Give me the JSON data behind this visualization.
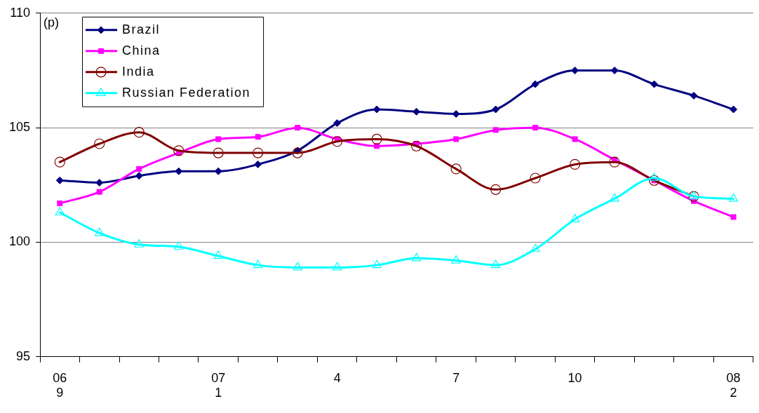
{
  "chart_data": {
    "type": "line",
    "categories": [
      "06\n9",
      null,
      null,
      null,
      "07\n1",
      null,
      null,
      "4",
      null,
      null,
      "7",
      null,
      null,
      "10",
      null,
      null,
      null,
      "08\n2"
    ],
    "series": [
      {
        "name": "Brazil",
        "color": "#000080",
        "marker": "diamond",
        "values": [
          102.7,
          102.6,
          102.9,
          103.1,
          103.1,
          103.4,
          104.0,
          105.2,
          105.8,
          105.7,
          105.6,
          105.8,
          106.9,
          107.5,
          107.5,
          106.9,
          106.4,
          105.8
        ]
      },
      {
        "name": "China",
        "color": "#ff00ff",
        "marker": "square",
        "values": [
          101.7,
          102.2,
          103.2,
          103.9,
          104.5,
          104.6,
          105.0,
          104.5,
          104.2,
          104.3,
          104.5,
          104.9,
          105.0,
          104.5,
          103.6,
          102.7,
          101.8,
          101.1
        ]
      },
      {
        "name": "India",
        "color": "#800000",
        "marker": "circle",
        "values": [
          103.5,
          104.3,
          104.8,
          104.0,
          103.9,
          103.9,
          103.9,
          104.4,
          104.5,
          104.2,
          103.2,
          102.3,
          102.8,
          103.4,
          103.5,
          102.7,
          102.0,
          null
        ]
      },
      {
        "name": "Russian Federation",
        "color": "#00ffff",
        "marker": "triangle",
        "values": [
          101.3,
          100.4,
          99.9,
          99.8,
          99.4,
          99.0,
          98.9,
          98.9,
          99.0,
          99.3,
          99.2,
          99.0,
          99.7,
          101.0,
          101.9,
          102.8,
          102.0,
          101.9
        ]
      }
    ],
    "ylim": [
      95,
      110
    ],
    "yticks": [
      95,
      100,
      105,
      110
    ],
    "grid": "y",
    "legend": "top left",
    "annotations": [
      "(p)"
    ]
  }
}
